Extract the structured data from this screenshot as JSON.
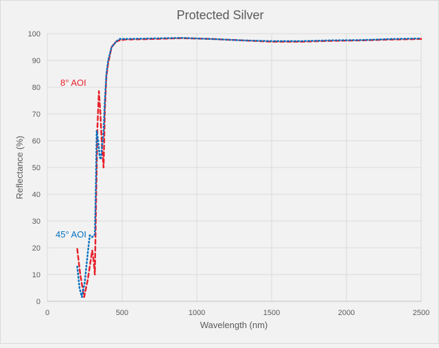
{
  "chart_data": {
    "type": "line",
    "title": "Protected Silver",
    "xlabel": "Wavelength (nm)",
    "ylabel": "Reflectance (%)",
    "xlim": [
      0,
      2500
    ],
    "ylim": [
      0,
      100
    ],
    "xticks": [
      0,
      500,
      1000,
      1500,
      2000,
      2500
    ],
    "yticks": [
      0,
      10,
      20,
      30,
      40,
      50,
      60,
      70,
      80,
      90,
      100
    ],
    "grid": true,
    "series": [
      {
        "name": "8° AOI",
        "color": "#e8202a",
        "dash": "dashed",
        "x": [
          200,
          220,
          246,
          270,
          300,
          310,
          318,
          325,
          335,
          345,
          355,
          365,
          376,
          385,
          395,
          407,
          430,
          460,
          482,
          520,
          700,
          900,
          1100,
          1300,
          1500,
          1700,
          1900,
          2100,
          2300,
          2500
        ],
        "y": [
          19.6,
          10,
          1.6,
          8,
          19,
          15,
          10,
          35,
          65,
          78.5,
          70,
          58,
          50,
          72,
          84,
          89,
          95,
          97,
          97.5,
          97.8,
          98,
          98.3,
          98,
          97.5,
          97,
          97,
          97.3,
          97.5,
          97.8,
          98
        ]
      },
      {
        "name": "45° AOI",
        "color": "#0070c0",
        "dash": "dotted",
        "x": [
          200,
          215,
          231,
          250,
          270,
          284,
          300,
          318,
          325,
          330,
          340,
          350,
          358,
          366,
          376,
          385,
          395,
          407,
          430,
          460,
          482,
          520,
          700,
          900,
          1100,
          1300,
          1500,
          1700,
          1900,
          2100,
          2300,
          2500
        ],
        "y": [
          13,
          5,
          1.6,
          7,
          18,
          24.7,
          24,
          25,
          45,
          63.6,
          60,
          54,
          53,
          58,
          63.6,
          75,
          85,
          90,
          95,
          97,
          98,
          98,
          98.2,
          98.4,
          98,
          97.5,
          97.2,
          97.2,
          97.5,
          97.6,
          98,
          98.2
        ]
      }
    ],
    "annotations": [
      {
        "text": "8° AOI",
        "color": "#e8202a"
      },
      {
        "text": "45° AOI",
        "color": "#0070c0"
      }
    ]
  }
}
